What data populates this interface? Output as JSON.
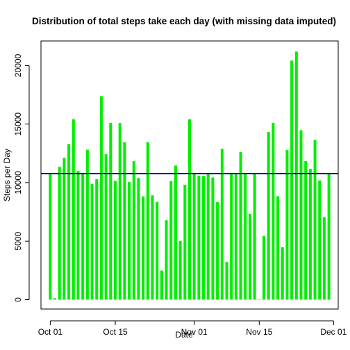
{
  "chart_data": {
    "type": "bar",
    "title": "Distribution of total steps take each day (with missing data imputed)",
    "xlabel": "Date",
    "ylabel": "Steps per Day",
    "x_ticks": [
      {
        "date": "2012-10-01",
        "label": "Oct 01"
      },
      {
        "date": "2012-10-15",
        "label": "Oct 15"
      },
      {
        "date": "2012-11-01",
        "label": "Nov 01"
      },
      {
        "date": "2012-11-15",
        "label": "Nov 15"
      },
      {
        "date": "2012-12-01",
        "label": "Dec 01"
      }
    ],
    "y_ticks": [
      0,
      5000,
      10000,
      15000,
      20000
    ],
    "xlim": [
      "2012-09-29",
      "2012-12-02"
    ],
    "ylim": [
      -800,
      22100
    ],
    "grid": false,
    "bar_color": "#00ee00",
    "mean_line": {
      "value": 10766,
      "color": "#00008b"
    },
    "x": [
      "2012-10-01",
      "2012-10-02",
      "2012-10-03",
      "2012-10-04",
      "2012-10-05",
      "2012-10-06",
      "2012-10-07",
      "2012-10-08",
      "2012-10-09",
      "2012-10-10",
      "2012-10-11",
      "2012-10-12",
      "2012-10-13",
      "2012-10-14",
      "2012-10-15",
      "2012-10-16",
      "2012-10-17",
      "2012-10-18",
      "2012-10-19",
      "2012-10-20",
      "2012-10-21",
      "2012-10-22",
      "2012-10-23",
      "2012-10-24",
      "2012-10-25",
      "2012-10-26",
      "2012-10-27",
      "2012-10-28",
      "2012-10-29",
      "2012-10-30",
      "2012-10-31",
      "2012-11-01",
      "2012-11-02",
      "2012-11-03",
      "2012-11-04",
      "2012-11-05",
      "2012-11-06",
      "2012-11-07",
      "2012-11-08",
      "2012-11-09",
      "2012-11-10",
      "2012-11-11",
      "2012-11-12",
      "2012-11-13",
      "2012-11-14",
      "2012-11-15",
      "2012-11-16",
      "2012-11-17",
      "2012-11-18",
      "2012-11-19",
      "2012-11-20",
      "2012-11-21",
      "2012-11-22",
      "2012-11-23",
      "2012-11-24",
      "2012-11-25",
      "2012-11-26",
      "2012-11-27",
      "2012-11-28",
      "2012-11-29",
      "2012-11-30"
    ],
    "values": [
      10766,
      126,
      11352,
      12116,
      13294,
      15420,
      11015,
      10766,
      12811,
      9900,
      10304,
      17382,
      12426,
      15098,
      10139,
      15084,
      13452,
      10056,
      11829,
      10395,
      8821,
      13460,
      8918,
      8355,
      2492,
      6778,
      10119,
      11458,
      5018,
      9819,
      15414,
      10766,
      10600,
      10571,
      10766,
      10439,
      8334,
      12883,
      3219,
      10766,
      10766,
      12608,
      10765,
      7336,
      10766,
      41,
      5441,
      14339,
      15110,
      8841,
      4472,
      12787,
      20427,
      21194,
      14478,
      11834,
      11162,
      13646,
      10183,
      7047,
      10766
    ]
  }
}
